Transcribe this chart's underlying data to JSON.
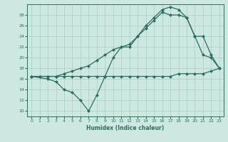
{
  "xlabel": "Humidex (Indice chaleur)",
  "bg_color": "#cce8e0",
  "line_color": "#2d6e62",
  "grid_color": "#aaccc4",
  "xlim": [
    -0.5,
    23.5
  ],
  "ylim": [
    9,
    30
  ],
  "yticks": [
    10,
    12,
    14,
    16,
    18,
    20,
    22,
    24,
    26,
    28
  ],
  "xticks": [
    0,
    1,
    2,
    3,
    4,
    5,
    6,
    7,
    8,
    9,
    10,
    11,
    12,
    13,
    14,
    15,
    16,
    17,
    18,
    19,
    20,
    21,
    22,
    23
  ],
  "line1_x": [
    0,
    1,
    2,
    3,
    4,
    5,
    6,
    7,
    8,
    9,
    10,
    11,
    12,
    13,
    14,
    15,
    16,
    17,
    18,
    19,
    20,
    21,
    22,
    23
  ],
  "line1_y": [
    16.5,
    16.5,
    16.5,
    16.5,
    16.5,
    16.5,
    16.5,
    16.5,
    16.5,
    16.5,
    16.5,
    16.5,
    16.5,
    16.5,
    16.5,
    16.5,
    16.5,
    16.5,
    17.0,
    17.0,
    17.0,
    17.0,
    17.5,
    18.0
  ],
  "line2_x": [
    0,
    1,
    2,
    3,
    4,
    5,
    6,
    7,
    8,
    9,
    10,
    11,
    12,
    13,
    14,
    15,
    16,
    17,
    18,
    19,
    20,
    21,
    22,
    23
  ],
  "line2_y": [
    16.5,
    16.5,
    16.5,
    16.5,
    17.0,
    17.5,
    18.0,
    18.5,
    19.5,
    20.5,
    21.5,
    22.0,
    22.5,
    24.0,
    25.5,
    27.0,
    28.5,
    28.0,
    28.0,
    27.5,
    24.0,
    20.5,
    20.0,
    18.0
  ],
  "line3_x": [
    0,
    2,
    3,
    4,
    5,
    6,
    7,
    8,
    9,
    10,
    11,
    12,
    13,
    14,
    15,
    16,
    17,
    18,
    19,
    20,
    21,
    22,
    23
  ],
  "line3_y": [
    16.5,
    16.0,
    15.5,
    14.0,
    13.5,
    12.0,
    10.0,
    13.0,
    16.5,
    20.0,
    22.0,
    22.0,
    24.0,
    26.0,
    27.5,
    29.0,
    29.5,
    29.0,
    27.5,
    24.0,
    24.0,
    20.5,
    18.0
  ]
}
